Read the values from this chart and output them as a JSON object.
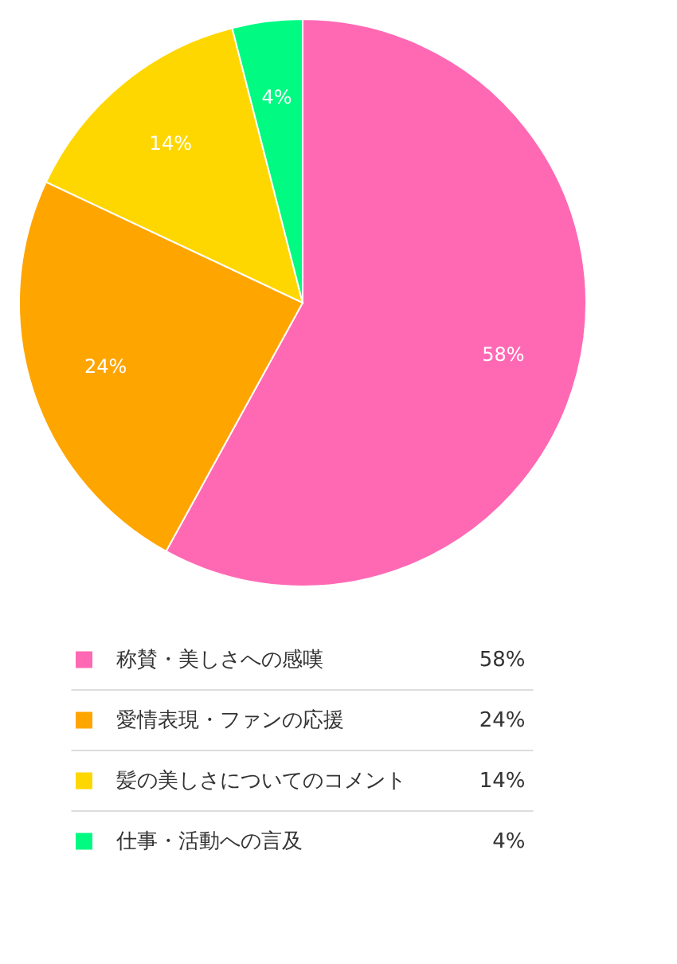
{
  "chart_data": {
    "type": "pie",
    "categories": [
      "称賛・美しさへの感嘆",
      "愛情表現・ファンの応援",
      "髪の美しさについてのコメント",
      "仕事・活動への言及"
    ],
    "values": [
      58,
      24,
      14,
      4
    ],
    "value_labels": [
      "58%",
      "24%",
      "14%",
      "4%"
    ],
    "colors": [
      "#ff69b4",
      "#ffa500",
      "#ffd700",
      "#00fa82"
    ],
    "legend": "bottom"
  }
}
